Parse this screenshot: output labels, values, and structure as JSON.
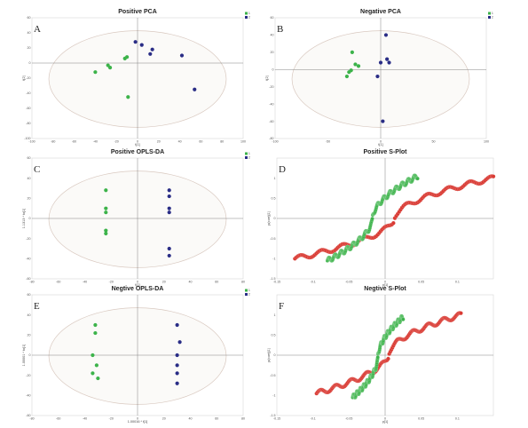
{
  "colors": {
    "green": "#3cb34a",
    "blue": "#2a2d86",
    "red": "#d93a33"
  },
  "chart_data": [
    {
      "id": "A",
      "type": "scatter",
      "title": "Positive PCA",
      "xlabel": "t[1]",
      "ylabel": "t[2]",
      "xlim": [
        -100,
        100
      ],
      "ylim": [
        -100,
        60
      ],
      "xticks": [
        -100,
        -80,
        -60,
        -40,
        -20,
        0,
        20,
        40,
        60,
        80,
        100
      ],
      "yticks": [
        -100,
        -80,
        -60,
        -40,
        -20,
        0,
        20,
        40,
        60
      ],
      "legend": [
        "1",
        "2"
      ],
      "series": [
        {
          "color": "green",
          "points": [
            [
              -40,
              -12
            ],
            [
              -28,
              -3
            ],
            [
              -26,
              -6
            ],
            [
              -12,
              6
            ],
            [
              -10,
              8
            ],
            [
              -9,
              -45
            ]
          ]
        },
        {
          "color": "blue",
          "points": [
            [
              -2,
              28
            ],
            [
              4,
              24
            ],
            [
              12,
              12
            ],
            [
              14,
              18
            ],
            [
              42,
              10
            ],
            [
              54,
              -35
            ]
          ]
        }
      ]
    },
    {
      "id": "B",
      "type": "scatter",
      "title": "Negative PCA",
      "xlabel": "t[1]",
      "ylabel": "t[2]",
      "xlim": [
        -100,
        100
      ],
      "ylim": [
        -80,
        60
      ],
      "xticks": [
        -100,
        -50,
        0,
        50,
        100
      ],
      "yticks": [
        -80,
        -60,
        -40,
        -20,
        0,
        20,
        40,
        60
      ],
      "legend": [
        "1",
        "2"
      ],
      "series": [
        {
          "color": "green",
          "points": [
            [
              -32,
              -8
            ],
            [
              -30,
              -3
            ],
            [
              -28,
              -1
            ],
            [
              -27,
              20
            ],
            [
              -24,
              6
            ],
            [
              -21,
              4
            ]
          ]
        },
        {
          "color": "blue",
          "points": [
            [
              -3,
              -8
            ],
            [
              0,
              8
            ],
            [
              2,
              -60
            ],
            [
              5,
              40
            ],
            [
              6,
              12
            ],
            [
              8,
              8
            ]
          ]
        }
      ]
    },
    {
      "id": "C",
      "type": "scatter",
      "title": "Positive OPLS-DA",
      "xlabel": "t[1]",
      "ylabel": "1.1313 * to[1]",
      "xlim": [
        -80,
        80
      ],
      "ylim": [
        -60,
        60
      ],
      "xticks": [
        -80,
        -60,
        -40,
        -20,
        0,
        20,
        40,
        60,
        80
      ],
      "yticks": [
        -60,
        -40,
        -20,
        0,
        20,
        40,
        60
      ],
      "legend": [
        "1",
        "2"
      ],
      "series": [
        {
          "color": "green",
          "points": [
            [
              -24,
              28
            ],
            [
              -24,
              10
            ],
            [
              -24,
              6
            ],
            [
              -24,
              -12
            ],
            [
              -24,
              -15
            ]
          ]
        },
        {
          "color": "blue",
          "points": [
            [
              24,
              28
            ],
            [
              24,
              22
            ],
            [
              24,
              10
            ],
            [
              24,
              6
            ],
            [
              24,
              -30
            ],
            [
              24,
              -37
            ]
          ]
        }
      ]
    },
    {
      "id": "D",
      "type": "scatter",
      "title": "Positive S-Plot",
      "xlabel": "p[1]",
      "ylabel": "p(corr)[1]",
      "xlim": [
        -0.15,
        0.15
      ],
      "ylim": [
        -1.5,
        1.5
      ],
      "xticks": [
        -0.15,
        -0.1,
        -0.05,
        0,
        0.05,
        0.1
      ],
      "yticks": [
        -1.5,
        -1,
        -0.5,
        0,
        0.5,
        1
      ],
      "series": [
        {
          "color": "red",
          "shape": "s-curve",
          "x_range": [
            -0.125,
            0.15
          ],
          "y_range": [
            -1,
            1
          ]
        },
        {
          "color": "green",
          "shape": "s-curve",
          "x_range": [
            -0.08,
            0.045
          ],
          "y_range": [
            -1.05,
            1.05
          ]
        }
      ]
    },
    {
      "id": "E",
      "type": "scatter",
      "title": "Negtive OPLS-DA",
      "xlabel": "1.00016 * t[1]",
      "ylabel": "1.00001 * to[1]",
      "xlim": [
        -80,
        80
      ],
      "ylim": [
        -60,
        60
      ],
      "xticks": [
        -80,
        -60,
        -40,
        -20,
        0,
        20,
        40,
        60,
        80
      ],
      "yticks": [
        -60,
        -40,
        -20,
        0,
        20,
        40,
        60
      ],
      "legend": [
        "1",
        "2"
      ],
      "series": [
        {
          "color": "green",
          "points": [
            [
              -32,
              30
            ],
            [
              -32,
              22
            ],
            [
              -34,
              0
            ],
            [
              -31,
              -10
            ],
            [
              -34,
              -18
            ],
            [
              -30,
              -23
            ]
          ]
        },
        {
          "color": "blue",
          "points": [
            [
              30,
              30
            ],
            [
              32,
              13
            ],
            [
              30,
              0
            ],
            [
              30,
              -10
            ],
            [
              30,
              -18
            ],
            [
              30,
              -28
            ]
          ]
        }
      ]
    },
    {
      "id": "F",
      "type": "scatter",
      "title": "Negtive S-Plot",
      "xlabel": "p[1]",
      "ylabel": "p(corr)[1]",
      "xlim": [
        -0.15,
        0.15
      ],
      "ylim": [
        -1.5,
        1.5
      ],
      "xticks": [
        -0.15,
        -0.1,
        -0.05,
        0,
        0.05,
        0.1
      ],
      "yticks": [
        -1.5,
        -1,
        -0.5,
        0,
        0.5,
        1
      ],
      "series": [
        {
          "color": "red",
          "shape": "s-curve",
          "x_range": [
            -0.095,
            0.105
          ],
          "y_range": [
            -0.95,
            1
          ]
        },
        {
          "color": "green",
          "shape": "s-curve",
          "x_range": [
            -0.045,
            0.025
          ],
          "y_range": [
            -1.05,
            0.95
          ]
        }
      ]
    }
  ]
}
